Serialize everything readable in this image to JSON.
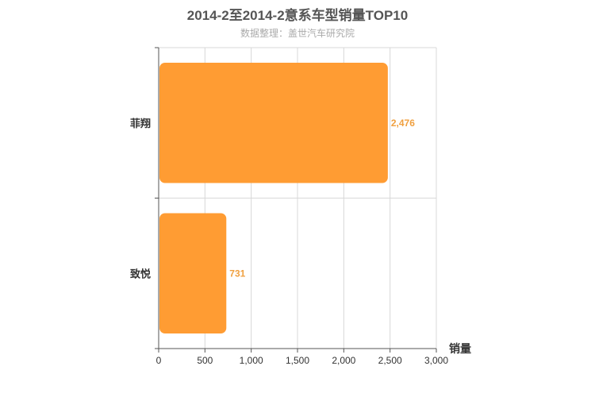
{
  "chart_data": {
    "type": "bar",
    "orientation": "horizontal",
    "title": "2014-2至2014-2意系车型销量TOP10",
    "subtitle": "数据整理：盖世汽车研究院",
    "categories": [
      "菲翔",
      "致悦"
    ],
    "values": [
      2476,
      731
    ],
    "data_labels": [
      "2,476",
      "731"
    ],
    "xlabel": "销量",
    "ylabel": "",
    "xlim": [
      0,
      3000
    ],
    "x_ticks": [
      0,
      500,
      1000,
      1500,
      2000,
      2500,
      3000
    ],
    "x_tick_labels": [
      "0",
      "500",
      "1,000",
      "1,500",
      "2,000",
      "2,500",
      "3,000"
    ],
    "grid": true,
    "legend": "none",
    "colors": {
      "bar": "#ff9c33",
      "label": "#f0a040",
      "grid": "#d8d8d8",
      "axis": "#555555"
    }
  }
}
